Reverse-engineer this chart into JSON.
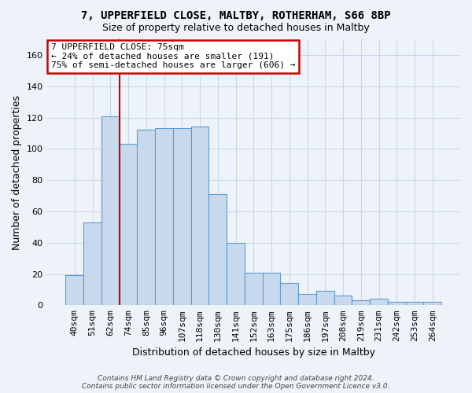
{
  "title1": "7, UPPERFIELD CLOSE, MALTBY, ROTHERHAM, S66 8BP",
  "title2": "Size of property relative to detached houses in Maltby",
  "xlabel": "Distribution of detached houses by size in Maltby",
  "ylabel": "Number of detached properties",
  "categories": [
    "40sqm",
    "51sqm",
    "62sqm",
    "74sqm",
    "85sqm",
    "96sqm",
    "107sqm",
    "118sqm",
    "130sqm",
    "141sqm",
    "152sqm",
    "163sqm",
    "175sqm",
    "186sqm",
    "197sqm",
    "208sqm",
    "219sqm",
    "231sqm",
    "242sqm",
    "253sqm",
    "264sqm"
  ],
  "values": [
    19,
    53,
    121,
    103,
    112,
    113,
    113,
    114,
    71,
    40,
    21,
    21,
    14,
    7,
    9,
    6,
    3,
    4,
    2,
    2,
    2
  ],
  "bar_color": "#c9d9ed",
  "bar_edge_color": "#5b9bd5",
  "grid_color": "#c8d8ea",
  "vline_color": "#cc0000",
  "annotation_line1": "7 UPPERFIELD CLOSE: 75sqm",
  "annotation_line2": "← 24% of detached houses are smaller (191)",
  "annotation_line3": "75% of semi-detached houses are larger (606) →",
  "annotation_box_color": "white",
  "annotation_box_edge": "#cc0000",
  "ylim": [
    0,
    170
  ],
  "yticks": [
    0,
    20,
    40,
    60,
    80,
    100,
    120,
    140,
    160
  ],
  "footer": "Contains HM Land Registry data © Crown copyright and database right 2024.\nContains public sector information licensed under the Open Government Licence v3.0.",
  "bg_color": "#eef2f9"
}
